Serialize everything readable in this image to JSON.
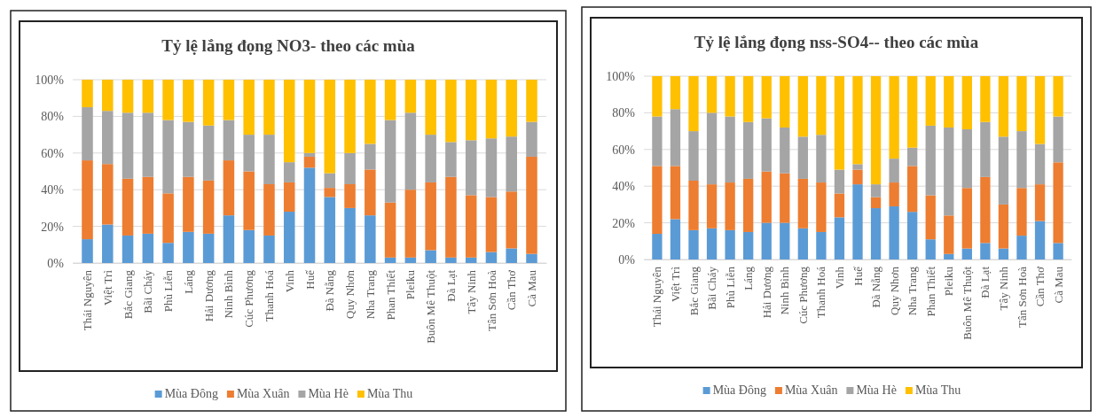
{
  "chart_data": [
    {
      "type": "bar",
      "title": "Tỷ lệ lắng đọng NO3- theo các mùa",
      "stacked": true,
      "categories": [
        "Thái Nguyên",
        "Việt  Trì",
        "Bắc Giang",
        "Bãi Cháy",
        "Phù Liễn",
        "Láng",
        "Hải Dương",
        "Ninh Bình",
        "Cúc Phương",
        "Thanh Hoá",
        "Vinh",
        "Huế",
        "Đà Nẵng",
        "Quy Nhơn",
        "Nha Trang",
        "Phan Thiết",
        "Pleiku",
        "Buôn Mê Thuột",
        "Đà Lạt",
        "Tây Ninh",
        "Tân Sơn Hoà",
        "Cần Thơ",
        "Cà Mau"
      ],
      "series": [
        {
          "name": "Mùa Đông",
          "color": "#5b9bd5",
          "values": [
            13,
            21,
            15,
            16,
            11,
            17,
            16,
            26,
            18,
            15,
            28,
            52,
            36,
            30,
            26,
            3,
            3,
            7,
            3,
            3,
            6,
            8,
            5
          ]
        },
        {
          "name": "Mùa Xuân",
          "color": "#ed7d31",
          "values": [
            43,
            33,
            31,
            31,
            27,
            30,
            29,
            30,
            32,
            28,
            16,
            6,
            5,
            13,
            25,
            30,
            37,
            37,
            44,
            34,
            30,
            31,
            53
          ]
        },
        {
          "name": "Mùa Hè",
          "color": "#a5a5a5",
          "values": [
            29,
            29,
            36,
            35,
            40,
            30,
            30,
            22,
            20,
            27,
            11,
            2,
            8,
            17,
            14,
            45,
            42,
            26,
            19,
            30,
            32,
            30,
            19
          ]
        },
        {
          "name": "Mùa Thu",
          "color": "#ffc000",
          "values": [
            15,
            17,
            18,
            18,
            22,
            23,
            25,
            22,
            30,
            30,
            45,
            40,
            51,
            40,
            35,
            22,
            18,
            30,
            34,
            33,
            32,
            31,
            23
          ]
        }
      ],
      "ylim": [
        0,
        100
      ],
      "yticks": [
        {
          "value": 0,
          "label": "0%"
        },
        {
          "value": 20,
          "label": "20%"
        },
        {
          "value": 40,
          "label": "40%"
        },
        {
          "value": 60,
          "label": "60%"
        },
        {
          "value": 80,
          "label": "80%"
        },
        {
          "value": 100,
          "label": "100%"
        }
      ],
      "grid": "y",
      "legend": "bottom"
    },
    {
      "type": "bar",
      "title": "Tỷ lệ lắng đọng nss-SO4-- theo các mùa",
      "stacked": true,
      "categories": [
        "Thái Nguyên",
        "Việt  Trì",
        "Bắc Giang",
        "Bãi Cháy",
        "Phù Liễn",
        "Láng",
        "Hải Dương",
        "Ninh Bình",
        "Cúc Phương",
        "Thanh Hoá",
        "Vinh",
        "Huế",
        "Đà Nẵng",
        "Quy Nhơn",
        "Nha Trang",
        "Phan Thiết",
        "Pleiku",
        "Buôn Mê Thuột",
        "Đà Lạt",
        "Tây Ninh",
        "Tân Sơn Hoà",
        "Cần Thơ",
        "Cà Mau"
      ],
      "series": [
        {
          "name": "Mùa Đông",
          "color": "#5b9bd5",
          "values": [
            14,
            22,
            16,
            17,
            16,
            15,
            20,
            20,
            17,
            15,
            23,
            41,
            28,
            29,
            26,
            11,
            3,
            6,
            9,
            6,
            13,
            21,
            9
          ]
        },
        {
          "name": "Mùa Xuân",
          "color": "#ed7d31",
          "values": [
            37,
            29,
            27,
            24,
            26,
            29,
            28,
            27,
            27,
            27,
            13,
            8,
            6,
            13,
            25,
            24,
            21,
            33,
            36,
            24,
            26,
            20,
            44
          ]
        },
        {
          "name": "Mùa Hè",
          "color": "#a5a5a5",
          "values": [
            27,
            31,
            27,
            39,
            36,
            31,
            29,
            25,
            23,
            26,
            13,
            3,
            7,
            13,
            10,
            38,
            48,
            32,
            30,
            37,
            31,
            22,
            25
          ]
        },
        {
          "name": "Mùa Thu",
          "color": "#ffc000",
          "values": [
            22,
            18,
            30,
            20,
            22,
            25,
            23,
            28,
            33,
            32,
            51,
            48,
            59,
            45,
            39,
            27,
            28,
            29,
            25,
            33,
            30,
            37,
            22
          ]
        }
      ],
      "ylim": [
        0,
        100
      ],
      "yticks": [
        {
          "value": 0,
          "label": "0%"
        },
        {
          "value": 20,
          "label": "20%"
        },
        {
          "value": 40,
          "label": "40%"
        },
        {
          "value": 60,
          "label": "60%"
        },
        {
          "value": 80,
          "label": "80%"
        },
        {
          "value": 100,
          "label": "100%"
        }
      ],
      "grid": "y",
      "legend": "bottom"
    }
  ]
}
